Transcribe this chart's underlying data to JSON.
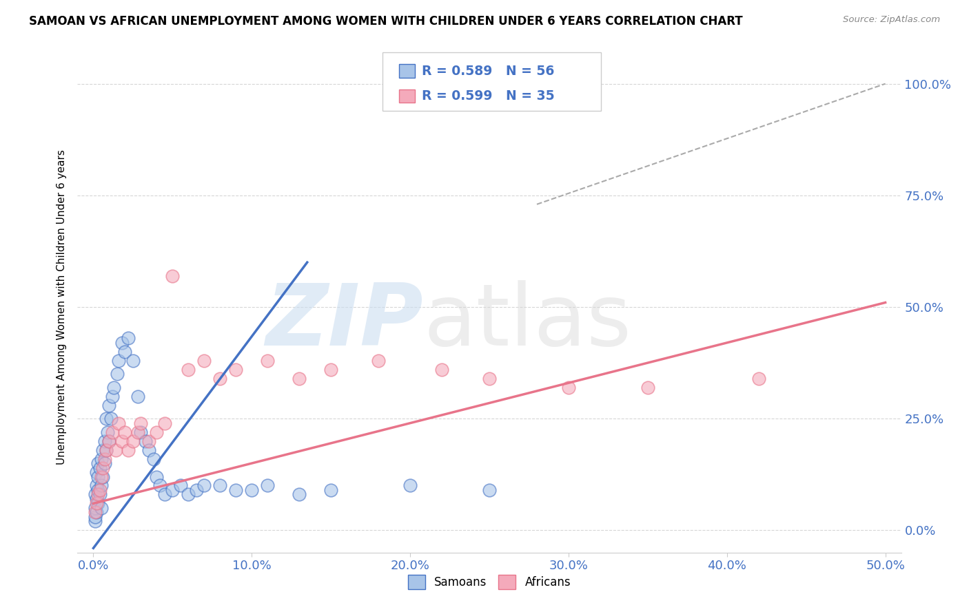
{
  "title": "SAMOAN VS AFRICAN UNEMPLOYMENT AMONG WOMEN WITH CHILDREN UNDER 6 YEARS CORRELATION CHART",
  "source": "Source: ZipAtlas.com",
  "ylabel": "Unemployment Among Women with Children Under 6 years",
  "blue_color": "#4472C4",
  "pink_color": "#E8748A",
  "blue_scatter_color": "#A8C4E8",
  "pink_scatter_color": "#F4AABB",
  "r_samoan": 0.589,
  "n_samoan": 56,
  "r_african": 0.599,
  "n_african": 35,
  "watermark_zip": "ZIP",
  "watermark_atlas": "atlas",
  "samoans_x": [
    0.001,
    0.001,
    0.001,
    0.001,
    0.002,
    0.002,
    0.002,
    0.002,
    0.003,
    0.003,
    0.003,
    0.003,
    0.004,
    0.004,
    0.005,
    0.005,
    0.005,
    0.006,
    0.006,
    0.007,
    0.007,
    0.008,
    0.008,
    0.009,
    0.01,
    0.01,
    0.011,
    0.012,
    0.013,
    0.015,
    0.016,
    0.018,
    0.02,
    0.022,
    0.025,
    0.028,
    0.03,
    0.033,
    0.035,
    0.038,
    0.04,
    0.042,
    0.045,
    0.05,
    0.055,
    0.06,
    0.065,
    0.07,
    0.08,
    0.09,
    0.1,
    0.11,
    0.13,
    0.15,
    0.2,
    0.25
  ],
  "samoans_y": [
    0.02,
    0.03,
    0.05,
    0.08,
    0.04,
    0.07,
    0.1,
    0.13,
    0.06,
    0.09,
    0.12,
    0.15,
    0.08,
    0.14,
    0.05,
    0.1,
    0.16,
    0.12,
    0.18,
    0.15,
    0.2,
    0.18,
    0.25,
    0.22,
    0.2,
    0.28,
    0.25,
    0.3,
    0.32,
    0.35,
    0.38,
    0.42,
    0.4,
    0.43,
    0.38,
    0.3,
    0.22,
    0.2,
    0.18,
    0.16,
    0.12,
    0.1,
    0.08,
    0.09,
    0.1,
    0.08,
    0.09,
    0.1,
    0.1,
    0.09,
    0.09,
    0.1,
    0.08,
    0.09,
    0.1,
    0.09
  ],
  "africans_x": [
    0.001,
    0.002,
    0.003,
    0.004,
    0.005,
    0.006,
    0.007,
    0.008,
    0.01,
    0.012,
    0.014,
    0.016,
    0.018,
    0.02,
    0.022,
    0.025,
    0.028,
    0.03,
    0.035,
    0.04,
    0.045,
    0.05,
    0.06,
    0.07,
    0.08,
    0.09,
    0.11,
    0.13,
    0.15,
    0.18,
    0.22,
    0.25,
    0.3,
    0.35,
    0.42
  ],
  "africans_y": [
    0.04,
    0.06,
    0.08,
    0.09,
    0.12,
    0.14,
    0.16,
    0.18,
    0.2,
    0.22,
    0.18,
    0.24,
    0.2,
    0.22,
    0.18,
    0.2,
    0.22,
    0.24,
    0.2,
    0.22,
    0.24,
    0.57,
    0.36,
    0.38,
    0.34,
    0.36,
    0.38,
    0.34,
    0.36,
    0.38,
    0.36,
    0.34,
    0.32,
    0.32,
    0.34
  ],
  "blue_line": [
    [
      0.0,
      -0.04
    ],
    [
      0.135,
      0.6
    ]
  ],
  "pink_line": [
    [
      0.0,
      0.06
    ],
    [
      0.5,
      0.51
    ]
  ],
  "diag_line": [
    [
      0.28,
      0.73
    ],
    [
      0.5,
      1.0
    ]
  ],
  "xticks": [
    0.0,
    0.1,
    0.2,
    0.3,
    0.4,
    0.5
  ],
  "yticks": [
    0.0,
    0.25,
    0.5,
    0.75,
    1.0
  ],
  "xlim": [
    -0.01,
    0.51
  ],
  "ylim": [
    -0.05,
    1.05
  ]
}
